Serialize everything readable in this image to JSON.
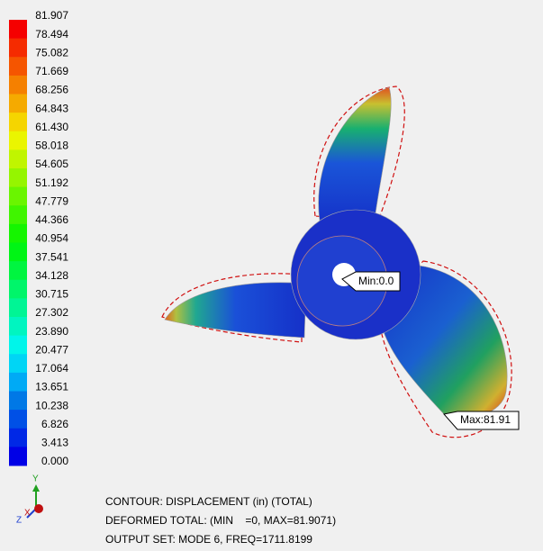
{
  "legend": {
    "labels": [
      "81.907",
      "78.494",
      "75.082",
      "71.669",
      "68.256",
      "64.843",
      "61.430",
      "58.018",
      "54.605",
      "51.192",
      "47.779",
      "44.366",
      "40.954",
      "37.541",
      "34.128",
      "30.715",
      "27.302",
      "23.890",
      "20.477",
      "17.064",
      "13.651",
      "10.238",
      "6.826",
      "3.413",
      "0.000"
    ]
  },
  "annotations": {
    "min": "Min:0.0",
    "max": "Max:81.91"
  },
  "triad": {
    "x": "X",
    "y": "Y",
    "z": "Z"
  },
  "footer": {
    "lines": [
      "CONTOUR: DISPLACEMENT (in) (TOTAL)",
      "DEFORMED TOTAL: (MIN    =0, MAX=81.9071)",
      "OUTPUT SET: MODE 6, FREQ=1711.8199"
    ]
  }
}
